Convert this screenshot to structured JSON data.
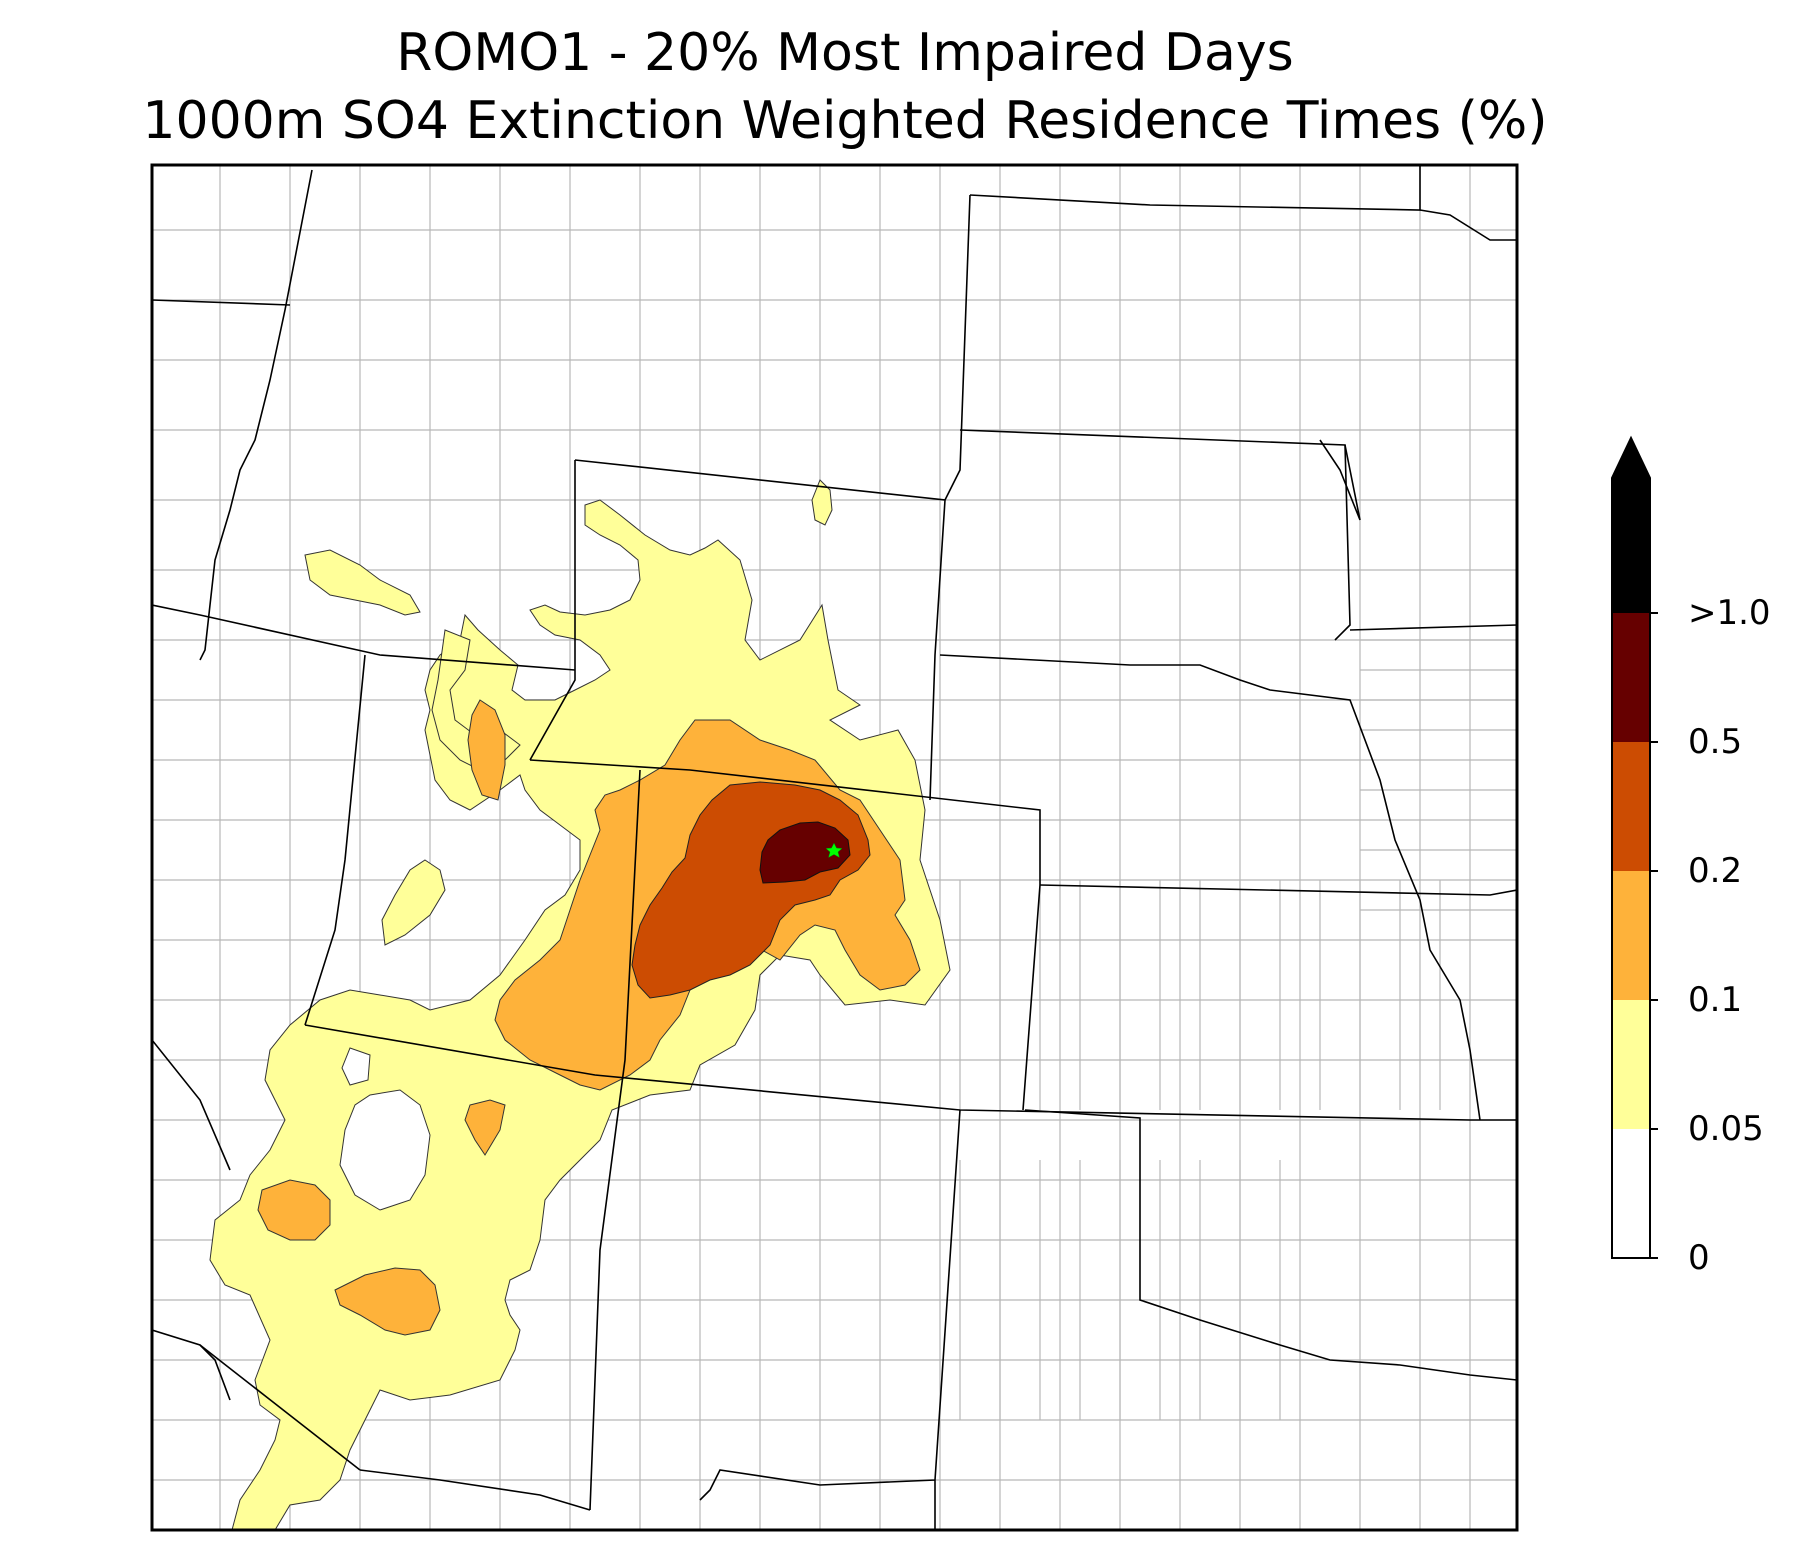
{
  "title": {
    "line1": "ROMO1 - 20% Most Impaired Days",
    "line2": "1000m SO4 Extinction Weighted Residence Times (%)"
  },
  "colorbar": {
    "labels": [
      "0",
      "0.05",
      "0.1",
      "0.2",
      "0.5",
      ">1.0"
    ],
    "colors": [
      "#ffffff",
      "#ffff99",
      "#feb23a",
      "#cc4c02",
      "#660000",
      "#000000"
    ],
    "extend": "max"
  },
  "map": {
    "site_marker": "green-star",
    "contour_colors": {
      "gt_0_05": "#ffff99",
      "gt_0_1": "#feb23a",
      "gt_0_2": "#cc4c02",
      "gt_0_5": "#660000"
    }
  }
}
